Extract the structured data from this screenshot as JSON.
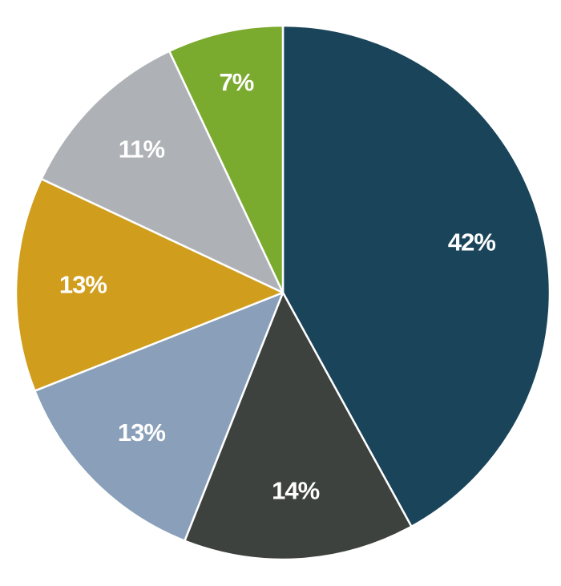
{
  "chart_data": {
    "type": "pie",
    "values": [
      42,
      14,
      13,
      13,
      11,
      7
    ],
    "value_labels": [
      "42%",
      "14%",
      "13%",
      "13%",
      "11%",
      "7%"
    ],
    "colors": [
      "#1a4459",
      "#3d423e",
      "#8a9fb9",
      "#d09d1c",
      "#aeb1b6",
      "#7aaa2e"
    ]
  }
}
